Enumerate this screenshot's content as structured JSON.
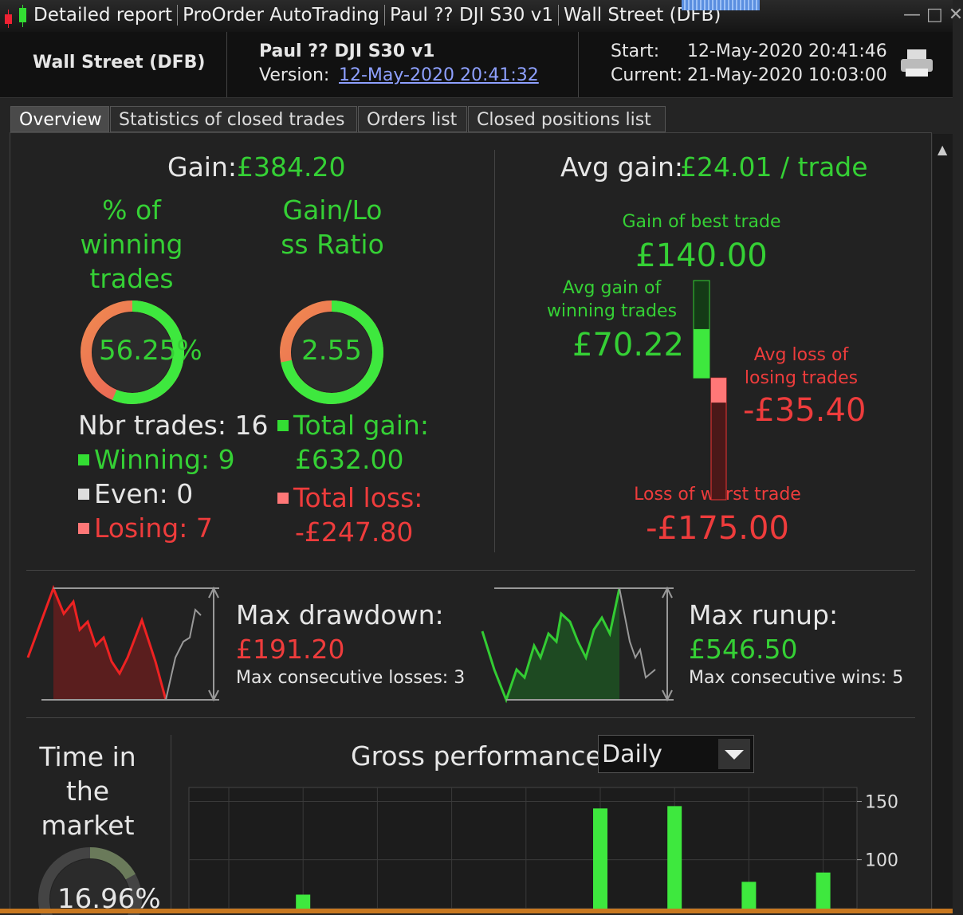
{
  "titlebar": {
    "items": [
      "Detailed report",
      "ProOrder AutoTrading",
      "Paul ?? DJI S30 v1",
      "Wall Street (DFB)"
    ]
  },
  "header": {
    "instrument": "Wall Street (DFB)",
    "strategy": "Paul ?? DJI S30 v1",
    "version_label": "Version:",
    "version": "12-May-2020 20:41:32",
    "start_label": "Start:",
    "start": "12-May-2020 20:41:46",
    "current_label": "Current:",
    "current": "21-May-2020 10:03:00"
  },
  "tabs": [
    "Overview",
    "Statistics of closed trades",
    "Orders list",
    "Closed positions list"
  ],
  "overview": {
    "gain_label": "Gain:",
    "gain": "£384.20",
    "avg_gain_label": "Avg gain:",
    "avg_gain": "£24.01 / trade",
    "winning_title": "% of winning trades",
    "winning_pct": {
      "value": 56.25,
      "label": "56.25%"
    },
    "ratio_title": "Gain/Loss Ratio",
    "ratio": 2.55,
    "nbr_trades_label": "Nbr trades:",
    "nbr_trades": 16,
    "winning_label": "Winning:",
    "winning": 9,
    "even_label": "Even:",
    "even": 0,
    "losing_label": "Losing:",
    "losing": 7,
    "total_gain_label": "Total gain:",
    "total_gain": "£632.00",
    "total_loss_label": "Total loss:",
    "total_loss": "-£247.80",
    "best_label": "Gain of best trade",
    "best": {
      "value": 140,
      "label": "£140.00"
    },
    "avg_win_label": "Avg gain of winning trades",
    "avg_win": {
      "value": 70.22,
      "label": "£70.22"
    },
    "avg_loss_label": "Avg loss of losing trades",
    "avg_loss": {
      "value": -35.4,
      "label": "-£35.40"
    },
    "worst_label": "Loss of worst trade",
    "worst": {
      "value": -175,
      "label": "-£175.00"
    }
  },
  "drawdown": {
    "label": "Max drawdown:",
    "value": "£191.20",
    "consecutive": "Max consecutive losses: 3"
  },
  "runup": {
    "label": "Max runup:",
    "value": "£546.50",
    "consecutive": "Max consecutive wins: 5"
  },
  "time_in_market": {
    "title": "Time in the market",
    "pct": {
      "value": 16.96,
      "label": "16.96%"
    }
  },
  "gross_performance": {
    "title": "Gross performance",
    "period": "Daily",
    "chart": {
      "type": "bar",
      "categories": [
        null,
        null,
        null,
        null,
        null,
        null,
        null,
        null,
        null
      ],
      "values": [
        null,
        70,
        null,
        null,
        null,
        144,
        146,
        81,
        89
      ],
      "color": "#3ee83e",
      "ylim": [
        58,
        162
      ],
      "yticks": [
        100,
        150
      ],
      "grid": true
    }
  }
}
